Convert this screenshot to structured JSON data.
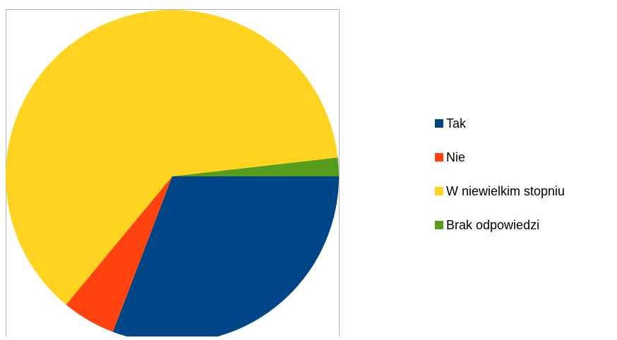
{
  "chart_data": {
    "type": "pie",
    "categories": [
      "Tak",
      "Nie",
      "W niewielkim stopniu",
      "Brak odpowiedzi"
    ],
    "values": [
      30.8,
      5.2,
      62.2,
      1.8
    ],
    "colors": [
      "#004586",
      "#FF420E",
      "#FFD320",
      "#579D1C"
    ],
    "legend_position": "right"
  },
  "legend": {
    "items": [
      {
        "label": "Tak",
        "color": "#004586"
      },
      {
        "label": "Nie",
        "color": "#FF420E"
      },
      {
        "label": "W niewielkim stopniu",
        "color": "#FFD320"
      },
      {
        "label": "Brak odpowiedzi",
        "color": "#579D1C"
      }
    ]
  }
}
